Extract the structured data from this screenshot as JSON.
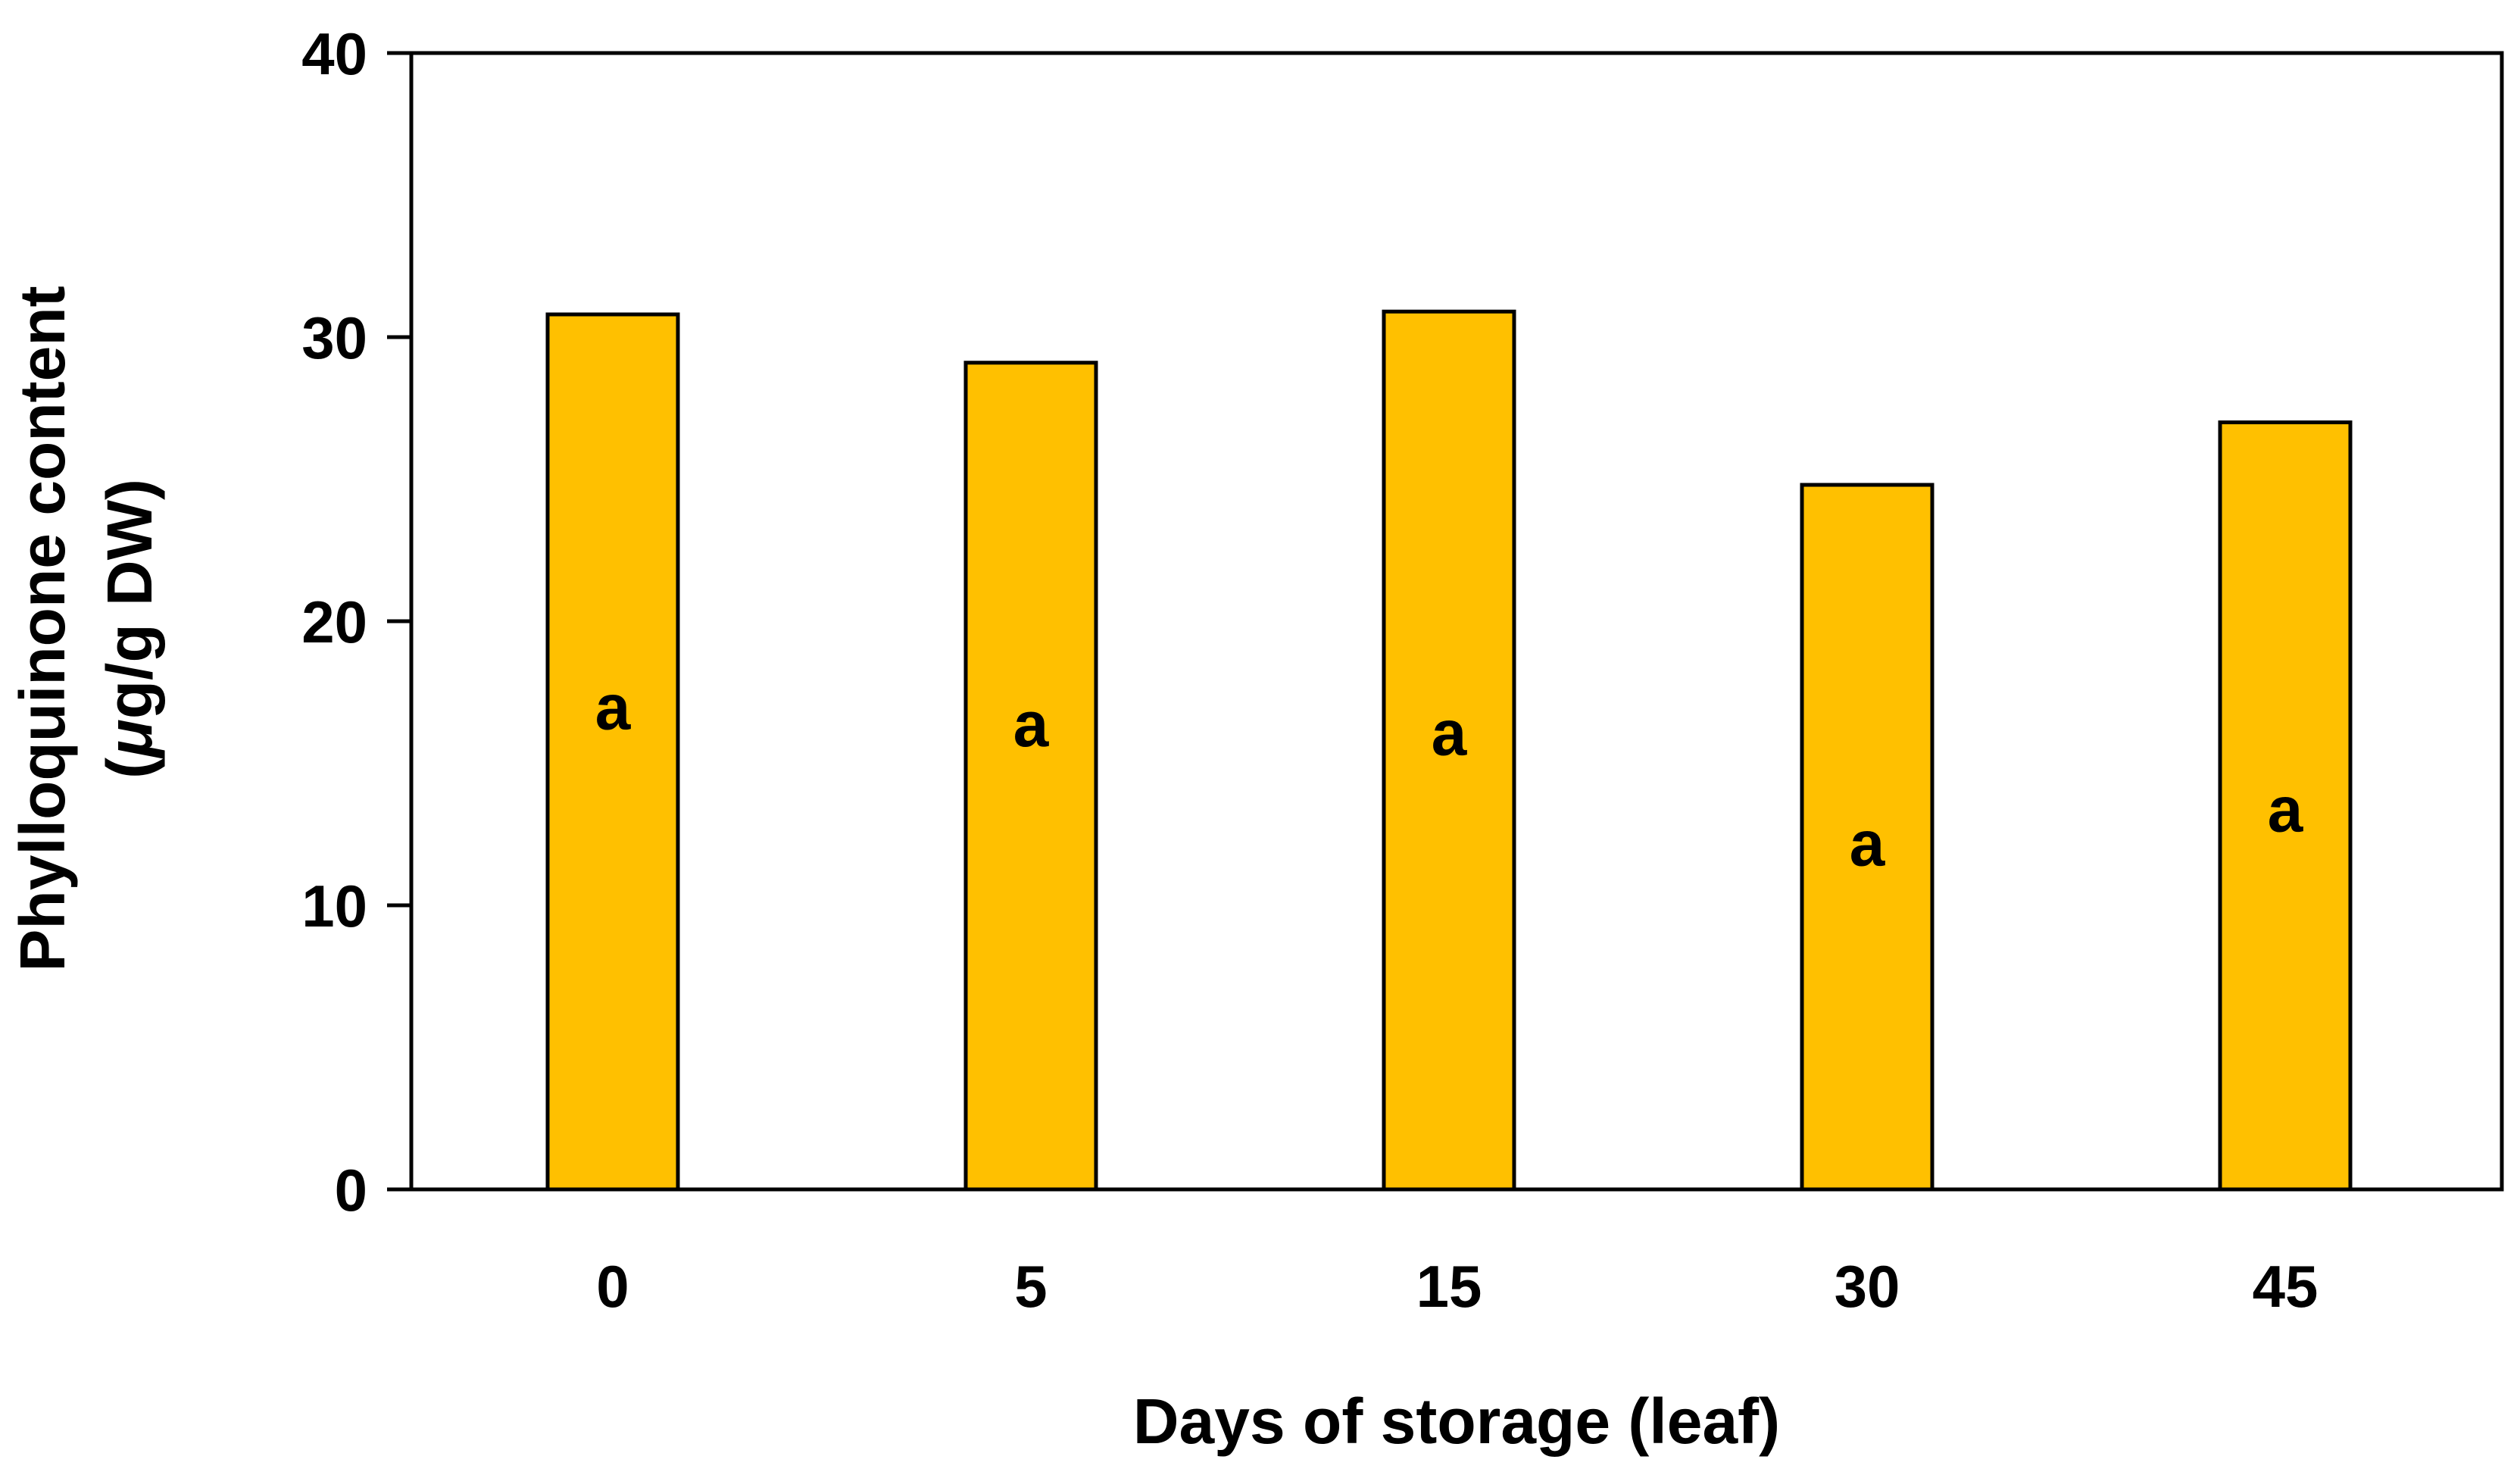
{
  "chart_data": {
    "type": "bar",
    "title": "",
    "xlabel": "Days of storage (leaf)",
    "ylabel_line1": "Phylloquinone content",
    "ylabel_line2_open": "(",
    "ylabel_line2_mu": "μ",
    "ylabel_line2_rest": "g/g DW)",
    "categories": [
      "0",
      "5",
      "15",
      "30",
      "45"
    ],
    "values": [
      30.8,
      29.1,
      30.9,
      24.8,
      27.0
    ],
    "bar_labels": [
      "a",
      "a",
      "a",
      "a",
      "a"
    ],
    "bar_label_values": [
      17.0,
      16.4,
      16.1,
      12.2,
      13.4
    ],
    "ylim": [
      0,
      40
    ],
    "yticks": [
      0,
      10,
      20,
      30,
      40
    ],
    "bar_color": "#FFC000",
    "grid": false,
    "legend": "none"
  }
}
